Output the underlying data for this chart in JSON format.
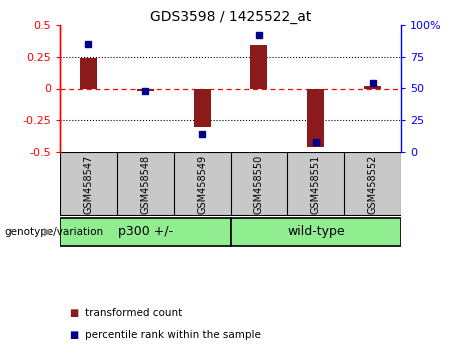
{
  "title": "GDS3598 / 1425522_at",
  "samples": [
    "GSM458547",
    "GSM458548",
    "GSM458549",
    "GSM458550",
    "GSM458551",
    "GSM458552"
  ],
  "transformed_counts": [
    0.24,
    -0.02,
    -0.3,
    0.34,
    -0.46,
    0.02
  ],
  "percentile_ranks": [
    85,
    48,
    14,
    92,
    8,
    54
  ],
  "group1_label": "p300 +/-",
  "group1_indices": [
    0,
    1,
    2
  ],
  "group2_label": "wild-type",
  "group2_indices": [
    3,
    4,
    5
  ],
  "group_color": "#90EE90",
  "sample_bg_color": "#C8C8C8",
  "bar_color": "#8B1A1A",
  "dot_color": "#00008B",
  "ylim_left": [
    -0.5,
    0.5
  ],
  "ylim_right": [
    0,
    100
  ],
  "yticks_left": [
    -0.5,
    -0.25,
    0.0,
    0.25,
    0.5
  ],
  "yticks_right": [
    0,
    25,
    50,
    75,
    100
  ],
  "ytick_labels_left": [
    "-0.5",
    "-0.25",
    "0",
    "0.25",
    "0.5"
  ],
  "ytick_labels_right": [
    "0",
    "25",
    "50",
    "75",
    "100%"
  ],
  "dotted_lines": [
    -0.25,
    0.25
  ],
  "legend_items": [
    "transformed count",
    "percentile rank within the sample"
  ],
  "xlabel": "genotype/variation",
  "bar_width": 0.3
}
